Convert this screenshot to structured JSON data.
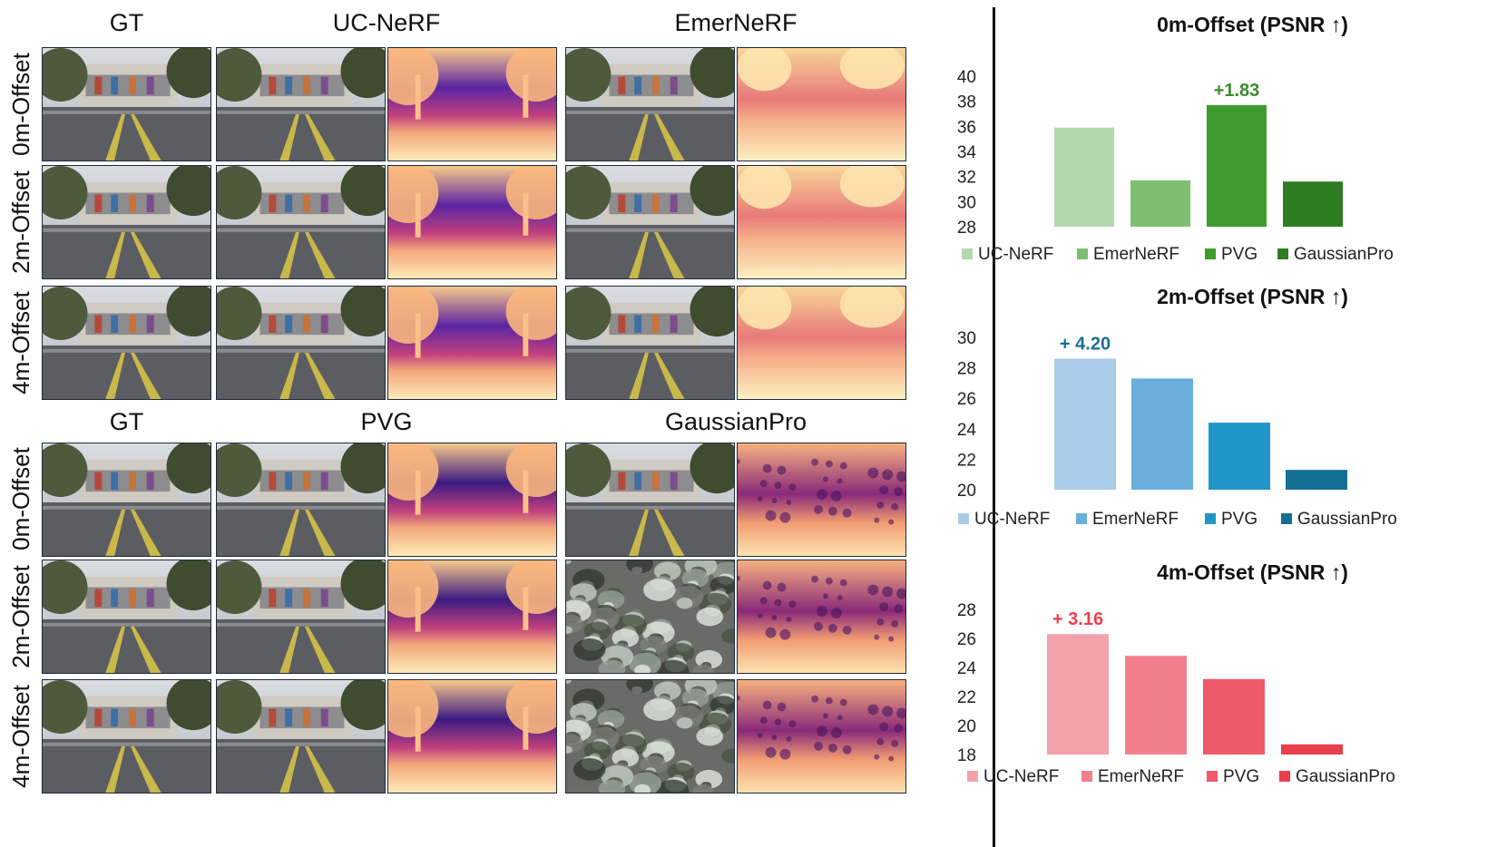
{
  "panel_top": {
    "columns": [
      "GT",
      "UC-NeRF",
      "EmerNeRF"
    ],
    "rows": [
      "0m-Offset",
      "2m-Offset",
      "4m-Offset"
    ]
  },
  "panel_bottom": {
    "columns": [
      "GT",
      "PVG",
      "GaussianPro"
    ],
    "rows": [
      "0m-Offset",
      "2m-Offset",
      "4m-Offset"
    ]
  },
  "colors": {
    "green": [
      "#b5d7ad",
      "#7fbf72",
      "#3d9b2e",
      "#2e7d22"
    ],
    "blue": [
      "#a9cde8",
      "#6aaedc",
      "#1f95c8",
      "#146f95"
    ],
    "red": [
      "#f3a2ab",
      "#f27f8b",
      "#ee5a67",
      "#e8404d"
    ],
    "annot_green": "#3d8b2e",
    "annot_blue": "#1a6f95",
    "annot_red": "#e8404d"
  },
  "chart_data": [
    {
      "type": "bar",
      "title": "0m-Offset (PSNR ↑)",
      "categories": [
        "UC-NeRF",
        "EmerNeRF",
        "PVG",
        "GaussianPro"
      ],
      "values": [
        35.9,
        31.7,
        37.7,
        31.6
      ],
      "ylim": [
        28,
        40
      ],
      "yticks": [
        28,
        30,
        32,
        34,
        36,
        38,
        40
      ],
      "annotation": {
        "text": "+1.83",
        "index": 2
      },
      "legend": "bottom"
    },
    {
      "type": "bar",
      "title": "2m-Offset (PSNR ↑)",
      "categories": [
        "UC-NeRF",
        "EmerNeRF",
        "PVG",
        "GaussianPro"
      ],
      "values": [
        28.6,
        27.3,
        24.4,
        21.3
      ],
      "ylim": [
        20,
        30
      ],
      "yticks": [
        20,
        22,
        24,
        26,
        28,
        30
      ],
      "annotation": {
        "text": "+ 4.20",
        "index": 0
      },
      "legend": "bottom"
    },
    {
      "type": "bar",
      "title": "4m-Offset (PSNR ↑)",
      "categories": [
        "UC-NeRF",
        "EmerNeRF",
        "PVG",
        "GaussianPro"
      ],
      "values": [
        26.3,
        24.8,
        23.2,
        18.7
      ],
      "ylim": [
        18,
        28
      ],
      "yticks": [
        18,
        20,
        22,
        24,
        26,
        28
      ],
      "annotation": {
        "text": "+ 3.16",
        "index": 0
      },
      "legend": "bottom"
    }
  ]
}
